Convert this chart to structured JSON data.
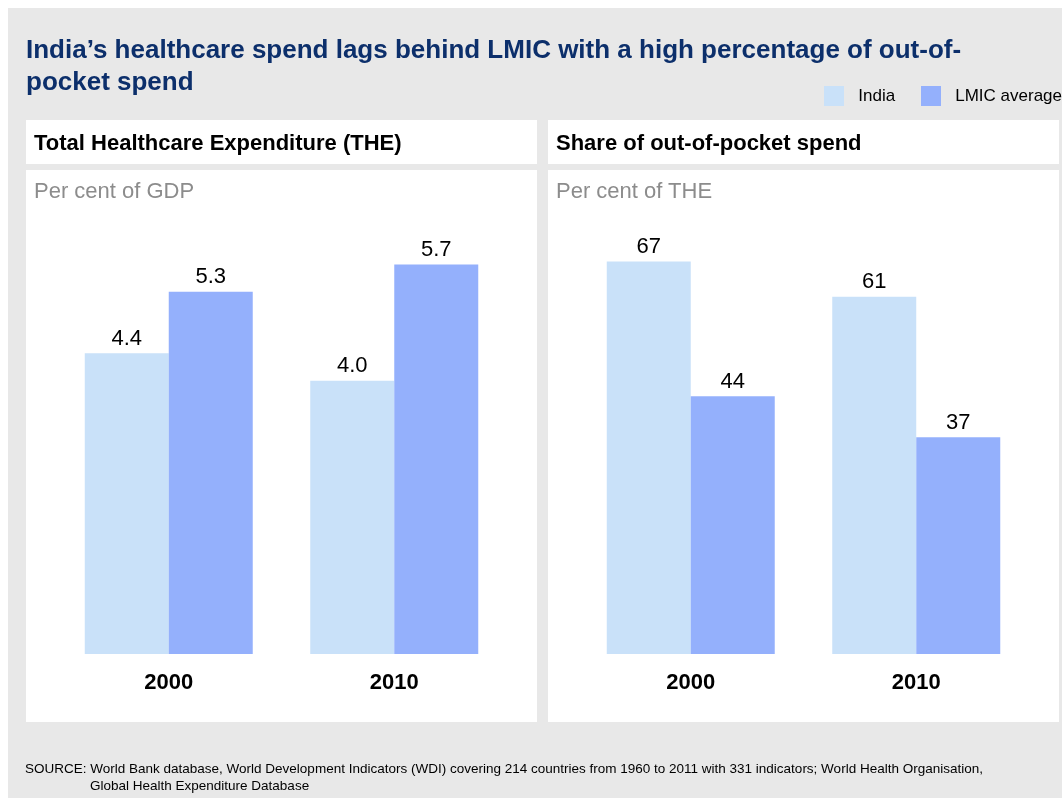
{
  "chart_data": [
    {
      "type": "bar",
      "title": "India’s healthcare spend lags behind LMIC with a high percentage of out-of-pocket spend",
      "subtitle": "Total Healthcare Expenditure (THE)",
      "ylabel": "Per cent of GDP",
      "categories": [
        "2000",
        "2010"
      ],
      "legend": "top right",
      "series": [
        {
          "name": "India",
          "color": "#c9e1f9",
          "values": [
            4.4,
            4.0
          ],
          "value_labels": [
            "4.4",
            "4.0"
          ]
        },
        {
          "name": "LMIC average",
          "color": "#94b0fc",
          "values": [
            5.3,
            5.7
          ],
          "value_labels": [
            "5.3",
            "5.7"
          ]
        }
      ]
    },
    {
      "type": "bar",
      "title": "Share of out-of-pocket spend",
      "ylabel": "Per cent of THE",
      "categories": [
        "2000",
        "2010"
      ],
      "data_labels": true,
      "legend": "top right",
      "series": [
        {
          "name": "India",
          "color": "#c9e1f9",
          "values": [
            67,
            61
          ]
        },
        {
          "name": "LMIC average",
          "color": "#94b0fc",
          "values": [
            44,
            37
          ]
        }
      ],
      "annotations": [
        "SOURCE: World Bank database, World Development Indicators (WDI) covering 214 countries from 1960 to 2011 with 331 indicators; World Health Organisation, Global Health Expenditure Database"
      ]
    }
  ]
}
